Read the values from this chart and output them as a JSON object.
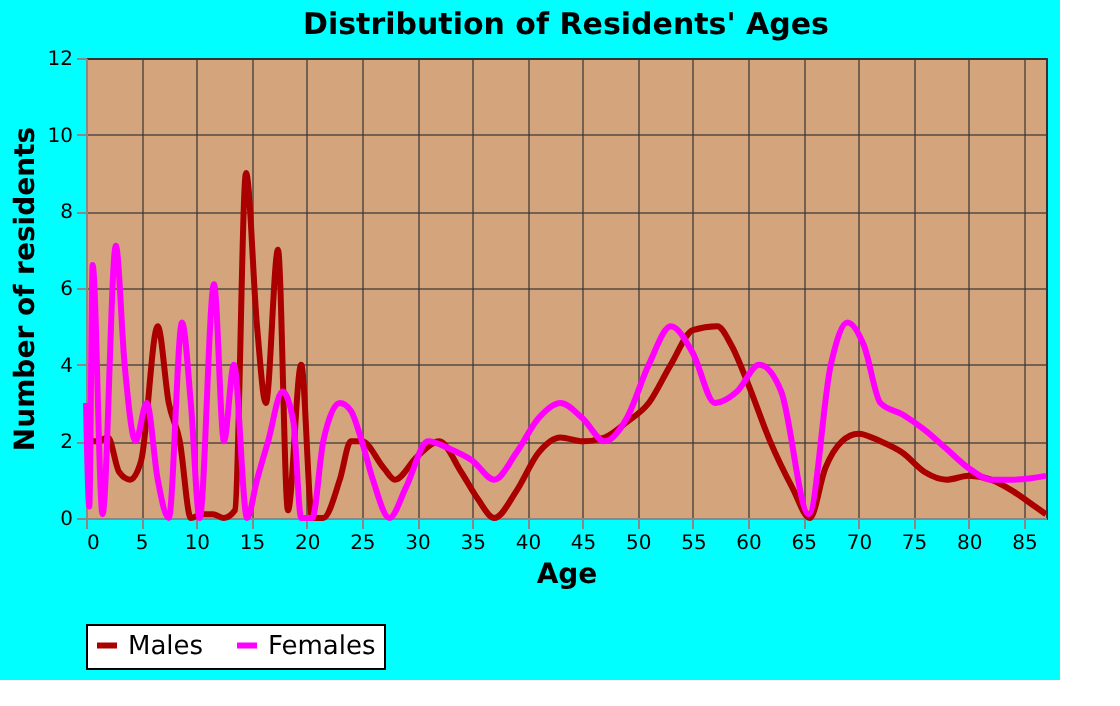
{
  "chart_data": {
    "type": "line",
    "title": "Distribution of Residents' Ages",
    "xlabel": "Age",
    "ylabel": "Number of residents",
    "xlim": [
      0,
      87
    ],
    "xticks": [
      0,
      5,
      10,
      15,
      20,
      25,
      30,
      35,
      40,
      45,
      50,
      55,
      60,
      65,
      70,
      75,
      80,
      85
    ],
    "ylim": [
      0,
      12
    ],
    "yticks": [
      0,
      2,
      4,
      6,
      8,
      10,
      12
    ],
    "grid": true,
    "legend": "bottom",
    "line_style": "solid",
    "marker": "none",
    "series": [
      {
        "name": "Males",
        "color": "#aa0000",
        "x": [
          0,
          1,
          2,
          3,
          4,
          5,
          6.5,
          7.5,
          8.5,
          9.5,
          10.5,
          11.5,
          12.5,
          13.5,
          14.5,
          15.5,
          16.3,
          17.4,
          18.3,
          19.5,
          20.5,
          21.5,
          23,
          24,
          25,
          27,
          28,
          30,
          32,
          34,
          35.5,
          37,
          39,
          41,
          43,
          45,
          47,
          49,
          51,
          53,
          55,
          57.2,
          58.5,
          60,
          62,
          64,
          65.6,
          67,
          68.5,
          70,
          72,
          74,
          76,
          78,
          80,
          82,
          84,
          86,
          87
        ],
        "values": [
          2,
          2,
          2.1,
          1.2,
          1,
          1.5,
          5,
          3,
          2,
          0,
          0.1,
          0.1,
          0,
          0.2,
          9,
          5,
          3,
          7,
          0.2,
          4,
          0,
          0,
          1,
          2,
          2,
          1.3,
          1,
          1.6,
          2,
          1.2,
          0.5,
          0,
          0.7,
          1.7,
          2.1,
          2,
          2.1,
          2.5,
          3,
          4,
          4.9,
          5,
          4.5,
          3.5,
          2,
          0.8,
          0,
          1.3,
          2,
          2.2,
          2,
          1.7,
          1.2,
          1,
          1.1,
          1,
          0.7,
          0.3,
          0.1
        ]
      },
      {
        "name": "Females",
        "color": "#ff00ff",
        "x": [
          0,
          0.3,
          0.6,
          1.5,
          2.7,
          3.5,
          4.5,
          5.5,
          6.5,
          7.5,
          8.7,
          9.5,
          10.3,
          11.6,
          12.5,
          13.4,
          14.6,
          15.5,
          16.5,
          17.8,
          18.8,
          19.5,
          20.5,
          21.5,
          23,
          24,
          25,
          26,
          27.5,
          29,
          31,
          33,
          35,
          37,
          39,
          41,
          43,
          45,
          47,
          49,
          51,
          53,
          55,
          57,
          59,
          61,
          63,
          65.5,
          67.5,
          69,
          70.5,
          72,
          74,
          76,
          78,
          80,
          82,
          84,
          87
        ],
        "values": [
          3,
          0.3,
          6.6,
          0.1,
          7.1,
          4,
          2,
          3,
          1,
          0,
          5.1,
          3,
          0,
          6.1,
          2,
          4,
          0,
          1,
          2,
          3.3,
          2.5,
          0,
          0,
          2,
          3,
          2.8,
          2,
          1,
          0,
          0.8,
          2,
          1.8,
          1.5,
          1,
          1.7,
          2.6,
          3,
          2.6,
          2,
          2.6,
          4,
          5,
          4.3,
          3,
          3.3,
          4,
          3.3,
          0.1,
          4,
          5.1,
          4.5,
          3,
          2.7,
          2.3,
          1.8,
          1.3,
          1,
          1,
          1.1
        ]
      }
    ]
  }
}
